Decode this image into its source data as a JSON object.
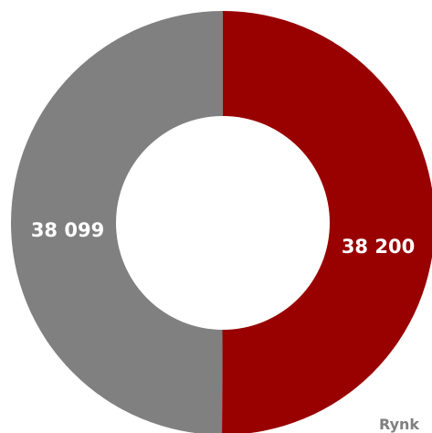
{
  "chart_data": {
    "type": "pie",
    "variant": "donut",
    "categories": [
      "",
      ""
    ],
    "values": [
      38200,
      38099
    ],
    "value_labels": [
      "38 200",
      "38 099"
    ],
    "colors": [
      "#990000",
      "#808080"
    ],
    "start_angle_deg": 0,
    "direction": "clockwise",
    "legend_fragment": "Rynk"
  }
}
